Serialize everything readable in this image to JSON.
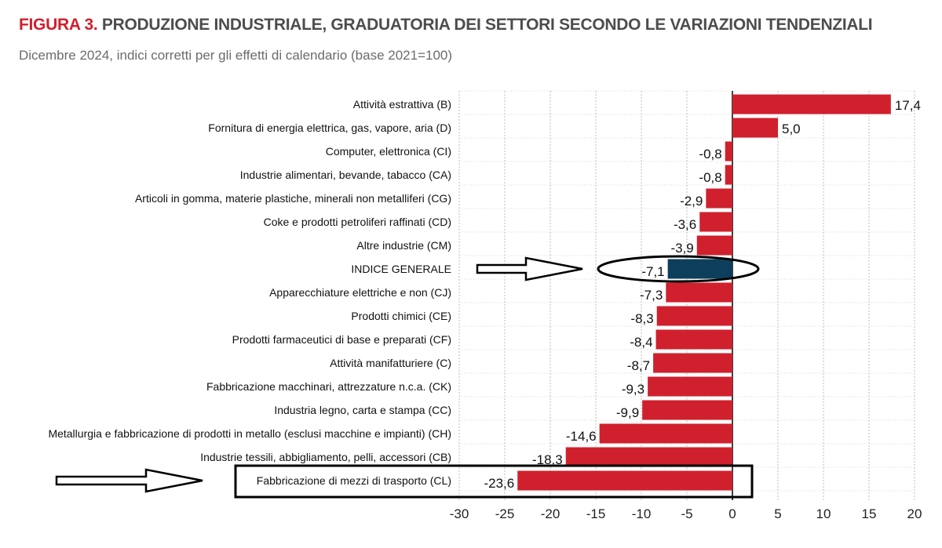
{
  "header": {
    "figure_label": "FIGURA 3.",
    "title": "PRODUZIONE INDUSTRIALE, GRADUATORIA DEI SETTORI SECONDO LE VARIAZIONI TENDENZIALI",
    "subtitle": "Dicembre 2024, indici corretti per gli effetti di calendario (base 2021=100)"
  },
  "colors": {
    "bar": "#d0202e",
    "highlight_bar": "#0d3f5c",
    "grid": "#bdbdbd",
    "figure_label": "#d0202e",
    "title": "#4d4d4d"
  },
  "chart_data": {
    "type": "bar",
    "orientation": "horizontal",
    "title": "PRODUZIONE INDUSTRIALE, GRADUATORIA DEI SETTORI SECONDO LE VARIAZIONI TENDENZIALI",
    "subtitle": "Dicembre 2024, indici corretti per gli effetti di calendario (base 2021=100)",
    "xlabel": "",
    "ylabel": "",
    "xlim": [
      -30,
      20
    ],
    "xticks": [
      -30,
      -25,
      -20,
      -15,
      -10,
      -5,
      0,
      5,
      10,
      15,
      20
    ],
    "grid": "vertical dotted",
    "legend": "none",
    "categories": [
      "Attività estrattiva (B)",
      "Fornitura di energia elettrica, gas, vapore, aria (D)",
      "Computer, elettronica (CI)",
      "Industrie alimentari, bevande, tabacco (CA)",
      "Articoli in gomma, materie plastiche, minerali non metalliferi (CG)",
      "Coke e prodotti petroliferi raffinati (CD)",
      "Altre industrie (CM)",
      "INDICE GENERALE",
      "Apparecchiature elettriche e non (CJ)",
      "Prodotti chimici (CE)",
      "Prodotti farmaceutici di base e preparati (CF)",
      "Attività manifatturiere (C)",
      "Fabbricazione macchinari, attrezzature n.c.a. (CK)",
      "Industria legno, carta e stampa (CC)",
      "Metallurgia e fabbricazione di prodotti in metallo (esclusi macchine e impianti) (CH)",
      "Industrie tessili, abbigliamento, pelli, accessori (CB)",
      "Fabbricazione di mezzi di trasporto (CL)"
    ],
    "values": [
      17.4,
      5.0,
      -0.8,
      -0.8,
      -2.9,
      -3.6,
      -3.9,
      -7.1,
      -7.3,
      -8.3,
      -8.4,
      -8.7,
      -9.3,
      -9.9,
      -14.6,
      -18.3,
      -23.6
    ],
    "value_labels": [
      "17,4",
      "5,0",
      "-0,8",
      "-0,8",
      "-2,9",
      "-3,6",
      "-3,9",
      "-7,1",
      "-7,3",
      "-8,3",
      "-8,4",
      "-8,7",
      "-9,3",
      "-9,9",
      "-14,6",
      "-18,3",
      "-23,6"
    ],
    "highlighted_category": "INDICE GENERALE",
    "annotations": [
      {
        "type": "ellipse",
        "target": "INDICE GENERALE"
      },
      {
        "type": "arrow",
        "target": "INDICE GENERALE"
      },
      {
        "type": "box",
        "target": "Fabbricazione di mezzi di trasporto (CL)"
      },
      {
        "type": "arrow",
        "target": "Fabbricazione di mezzi di trasporto (CL)"
      }
    ]
  }
}
